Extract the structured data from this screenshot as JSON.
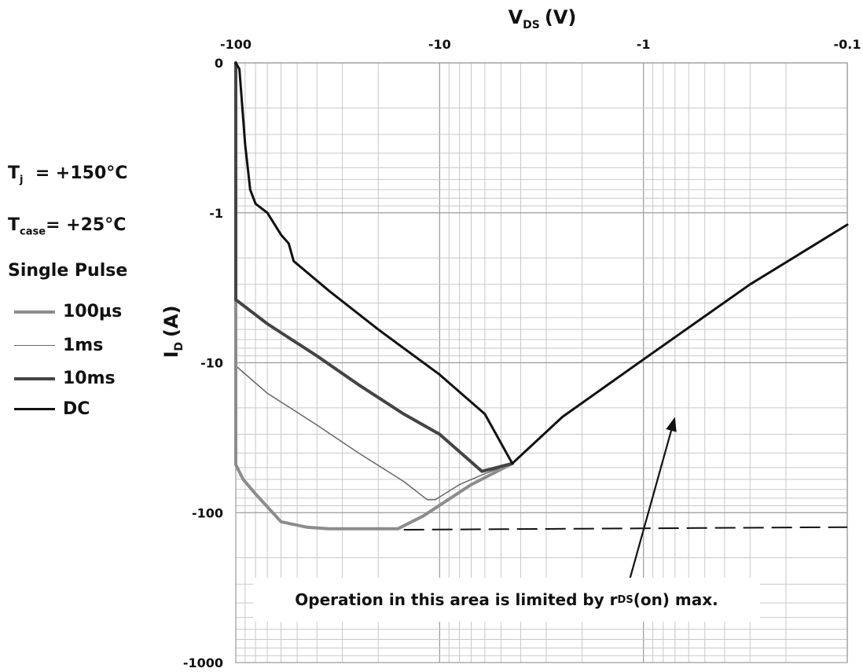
{
  "chart_data": {
    "type": "line",
    "title": "",
    "xlabel": "V",
    "xlabel_sub": "DS",
    "xlabel_unit": "(V)",
    "ylabel": "I",
    "ylabel_sub": "D",
    "ylabel_unit": "(A)",
    "x_scale": "log",
    "y_scale": "log",
    "xlim": [
      -100,
      -0.1
    ],
    "ylim": [
      0,
      -1000
    ],
    "x_ticks": [
      "-100",
      "-10",
      "-1",
      "-0.1"
    ],
    "y_ticks": [
      "0",
      "-1",
      "-10",
      "-100",
      "-1000"
    ],
    "grid": true,
    "legend_position": "left",
    "conditions": {
      "tj_label": "T",
      "tj_sub": "j",
      "tj_value": "= +150°C",
      "tcase_label": "T",
      "tcase_sub": "case",
      "tcase_value": "= +25°C",
      "pulse": "Single Pulse"
    },
    "series": [
      {
        "name": "100µs",
        "color": "#8c8c8c",
        "stroke_width": 4,
        "points": [
          [
            -100,
            -0.1
          ],
          [
            -100,
            -48
          ],
          [
            -92,
            -60
          ],
          [
            -80,
            -75
          ],
          [
            -60,
            -115
          ],
          [
            -45,
            -125
          ],
          [
            -35,
            -128
          ],
          [
            -20,
            -128
          ],
          [
            -16,
            -128
          ],
          [
            -12,
            -105
          ],
          [
            -7,
            -65
          ],
          [
            -4.4,
            -47
          ]
        ]
      },
      {
        "name": "1ms",
        "color": "#666666",
        "stroke_width": 1.5,
        "points": [
          [
            -100,
            -0.1
          ],
          [
            -100,
            -10.5
          ],
          [
            -70,
            -16
          ],
          [
            -40,
            -26
          ],
          [
            -25,
            -40
          ],
          [
            -15,
            -62
          ],
          [
            -11.5,
            -82
          ],
          [
            -10.5,
            -82
          ],
          [
            -8,
            -65
          ],
          [
            -6,
            -55
          ],
          [
            -4.4,
            -47
          ]
        ]
      },
      {
        "name": "10ms",
        "color": "#444444",
        "stroke_width": 4,
        "points": [
          [
            -100,
            -0.1
          ],
          [
            -100,
            -3.8
          ],
          [
            -70,
            -5.5
          ],
          [
            -40,
            -9
          ],
          [
            -25,
            -14
          ],
          [
            -15,
            -22
          ],
          [
            -10,
            -30
          ],
          [
            -6.2,
            -53
          ],
          [
            -4.4,
            -47
          ]
        ]
      },
      {
        "name": "DC",
        "color": "#111111",
        "stroke_width": 3,
        "points": [
          [
            -100,
            -0.1
          ],
          [
            -96,
            -0.11
          ],
          [
            -90,
            -0.35
          ],
          [
            -85,
            -0.7
          ],
          [
            -80,
            -0.87
          ],
          [
            -70,
            -1.0
          ],
          [
            -60,
            -1.4
          ],
          [
            -55,
            -1.6
          ],
          [
            -52,
            -2.1
          ],
          [
            -35,
            -3.3
          ],
          [
            -20,
            -6
          ],
          [
            -10,
            -12
          ],
          [
            -6,
            -22
          ],
          [
            -4.4,
            -47
          ],
          [
            -2.5,
            -23
          ],
          [
            -1,
            -9.5
          ],
          [
            -0.3,
            -3
          ],
          [
            -0.1,
            -1.2
          ]
        ]
      }
    ],
    "limit_line": {
      "style": "dashed",
      "color": "#111111",
      "points": [
        [
          -15,
          -130
        ],
        [
          -0.1,
          -125
        ]
      ]
    },
    "annotation": {
      "text_before": "Operation in this area is limited by r",
      "text_sub": "DS",
      "text_after": "(on) max.",
      "arrow_from": [
        -1.3,
        -470
      ],
      "arrow_to": [
        -0.7,
        -23
      ]
    }
  }
}
